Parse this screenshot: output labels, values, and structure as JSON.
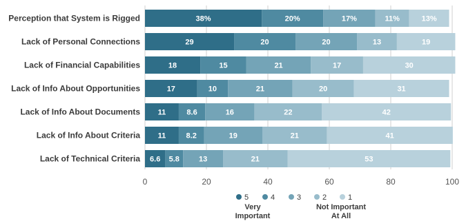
{
  "colors": {
    "grid": "#cfcfcf",
    "series": [
      "#2f6e88",
      "#4f8aa1",
      "#74a4b7",
      "#98bccb",
      "#b8d1dc"
    ]
  },
  "chart_data": {
    "type": "bar",
    "orientation": "horizontal",
    "stacked": true,
    "categories": [
      "Perception that System is Rigged",
      "Lack of Personal Connections",
      "Lack of Financial Capabilities",
      "Lack of Info About Opportunities",
      "Lack of Info About Documents",
      "Lack of Info About Criteria",
      "Lack of Technical Criteria"
    ],
    "series": [
      {
        "name": "5",
        "values": [
          38,
          29,
          18,
          17,
          11,
          11,
          6.6
        ],
        "labels": [
          "38%",
          "29",
          "18",
          "17",
          "11",
          "11",
          "6.6"
        ]
      },
      {
        "name": "4",
        "values": [
          20,
          20,
          15,
          10,
          8.6,
          8.2,
          5.8
        ],
        "labels": [
          "20%",
          "20",
          "15",
          "10",
          "8.6",
          "8.2",
          "5.8"
        ]
      },
      {
        "name": "3",
        "values": [
          17,
          20,
          21,
          21,
          16,
          19,
          13
        ],
        "labels": [
          "17%",
          "20",
          "21",
          "21",
          "16",
          "19",
          "13"
        ]
      },
      {
        "name": "2",
        "values": [
          11,
          13,
          17,
          20,
          22,
          21,
          21
        ],
        "labels": [
          "11%",
          "13",
          "17",
          "20",
          "22",
          "21",
          "21"
        ]
      },
      {
        "name": "1",
        "values": [
          13,
          19,
          30,
          31,
          42,
          41,
          53
        ],
        "labels": [
          "13%",
          "19",
          "30",
          "31",
          "42",
          "41",
          "53"
        ]
      }
    ],
    "xlim": [
      0,
      100
    ],
    "xticks": [
      0,
      20,
      40,
      60,
      80,
      100
    ],
    "grid": true,
    "legend": {
      "position": "bottom",
      "items": [
        "5",
        "4",
        "3",
        "2",
        "1"
      ],
      "notes": {
        "high": [
          "Very",
          "Important"
        ],
        "low": [
          "Not Important",
          "At All"
        ]
      }
    }
  }
}
